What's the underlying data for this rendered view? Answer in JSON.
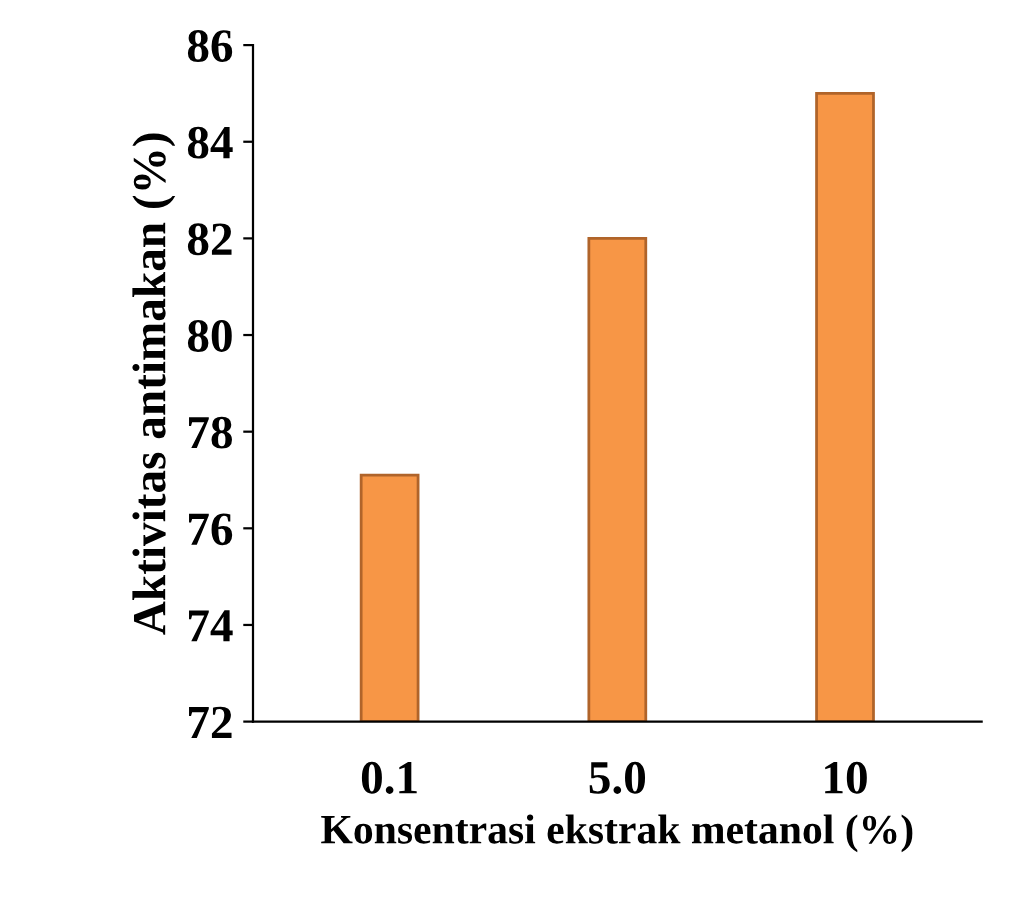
{
  "chart_data": {
    "type": "bar",
    "xlabel": "Konsentrasi ekstrak metanol (%)",
    "ylabel": "Aktivitas antimakan (%)",
    "categories": [
      "0.1",
      "5.0",
      "10"
    ],
    "values": [
      77.1,
      82.0,
      85.0
    ],
    "color": "#f79646",
    "ylim": [
      72,
      86
    ],
    "yticks": [
      72,
      74,
      76,
      78,
      80,
      82,
      84,
      86
    ],
    "grid": false
  }
}
